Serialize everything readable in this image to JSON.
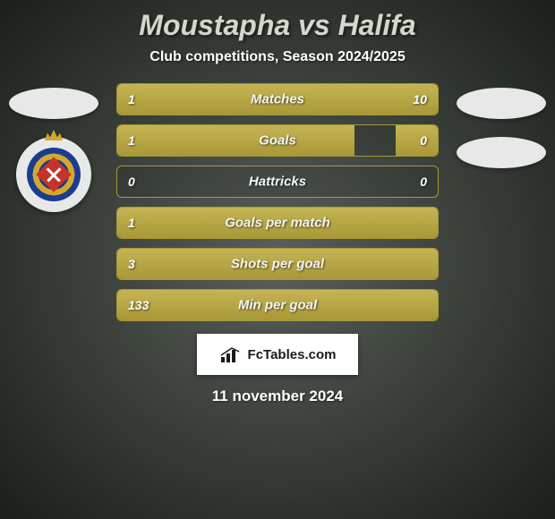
{
  "title": "Moustapha vs Halifa",
  "subtitle": "Club competitions, Season 2024/2025",
  "date": "11 november 2024",
  "branding_text": "FcTables.com",
  "colors": {
    "bar_fill": "#a89838",
    "bar_border": "#a89838",
    "title_color": "#d4d8cc",
    "text_color": "#ffffff",
    "background_center": "#5a5f5a",
    "background_edge": "#1a1f1a"
  },
  "stats": [
    {
      "label": "Matches",
      "left_value": "1",
      "right_value": "10",
      "left_fill_pct": 9,
      "right_fill_pct": 91
    },
    {
      "label": "Goals",
      "left_value": "1",
      "right_value": "0",
      "left_fill_pct": 74,
      "right_fill_pct": 13
    },
    {
      "label": "Hattricks",
      "left_value": "0",
      "right_value": "0",
      "left_fill_pct": 0,
      "right_fill_pct": 0
    },
    {
      "label": "Goals per match",
      "left_value": "1",
      "right_value": "",
      "left_fill_pct": 100,
      "right_fill_pct": 0
    },
    {
      "label": "Shots per goal",
      "left_value": "3",
      "right_value": "",
      "left_fill_pct": 100,
      "right_fill_pct": 0
    },
    {
      "label": "Min per goal",
      "left_value": "133",
      "right_value": "",
      "left_fill_pct": 100,
      "right_fill_pct": 0
    }
  ]
}
